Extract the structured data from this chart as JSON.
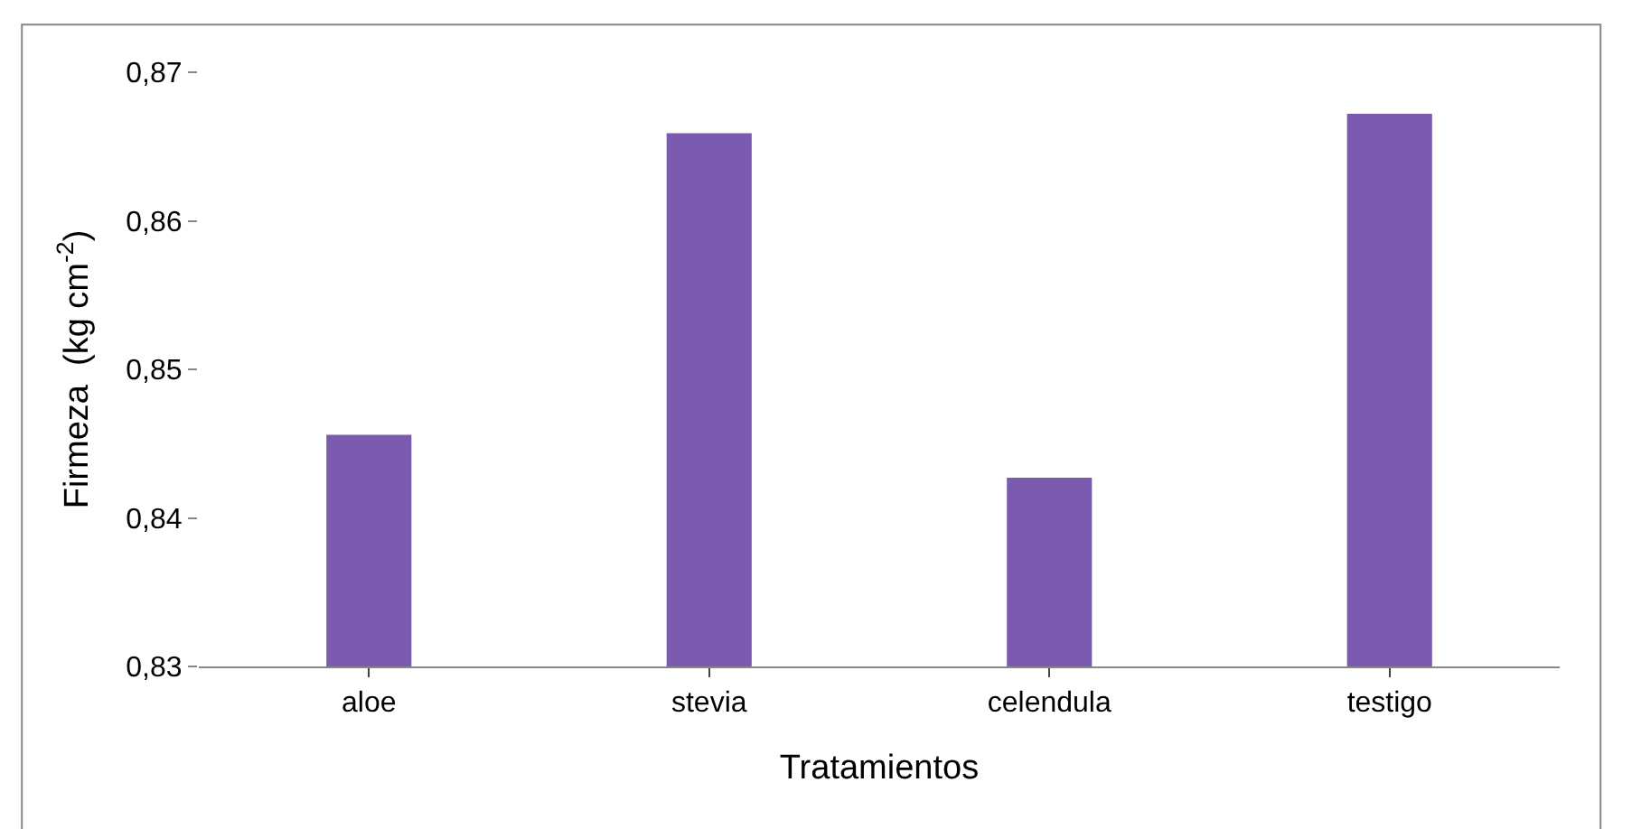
{
  "chart_data": {
    "type": "bar",
    "xlabel": "Tratamientos",
    "ylabel": "Firmeza  (kg cm$^{-2}$)",
    "categories": [
      "aloe",
      "stevia",
      "celendula",
      "testigo"
    ],
    "series": [
      {
        "color": "#7a5bb0",
        "values": [
          0.8456,
          0.8659,
          0.8427,
          0.8672
        ]
      }
    ],
    "ylim": [
      0.83,
      0.87
    ],
    "yticks": [
      {
        "value": 0.83,
        "label": "0,83"
      },
      {
        "value": 0.84,
        "label": "0,84"
      },
      {
        "value": 0.85,
        "label": "0,85"
      },
      {
        "value": 0.86,
        "label": "0,86"
      },
      {
        "value": 0.87,
        "label": "0,87"
      }
    ],
    "tick_labels": true
  }
}
